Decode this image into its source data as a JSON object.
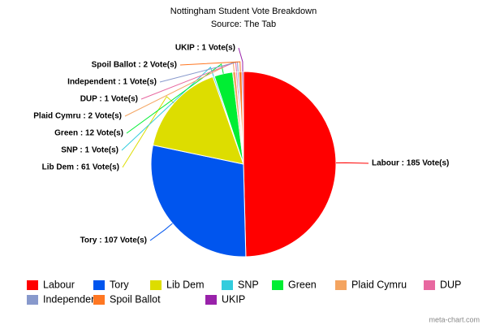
{
  "chart_data": {
    "type": "pie",
    "title": "Nottingham Student Vote Breakdown",
    "subtitle": "Source: The Tab",
    "categories": [
      "Labour",
      "Tory",
      "Lib Dem",
      "SNP",
      "Green",
      "Plaid Cymru",
      "DUP",
      "Independent",
      "Spoil Ballot",
      "UKIP"
    ],
    "values": [
      185,
      107,
      61,
      1,
      12,
      2,
      1,
      1,
      2,
      1
    ],
    "value_labels": [
      "Labour : 185 Vote(s)",
      "Tory : 107 Vote(s)",
      "Lib Dem : 61 Vote(s)",
      "SNP : 1 Vote(s)",
      "Green : 12 Vote(s)",
      "Plaid Cymru : 2 Vote(s)",
      "DUP : 1 Vote(s)",
      "Independent : 1 Vote(s)",
      "Spoil Ballot : 2 Vote(s)",
      "UKIP : 1 Vote(s)"
    ],
    "colors": [
      "#ff0000",
      "#0055ee",
      "#dddd00",
      "#33ccdd",
      "#00ee33",
      "#f4a460",
      "#e868a0",
      "#8899cc",
      "#ff7722",
      "#9922aa"
    ],
    "legend": "bottom"
  },
  "watermark": "meta-chart.com"
}
